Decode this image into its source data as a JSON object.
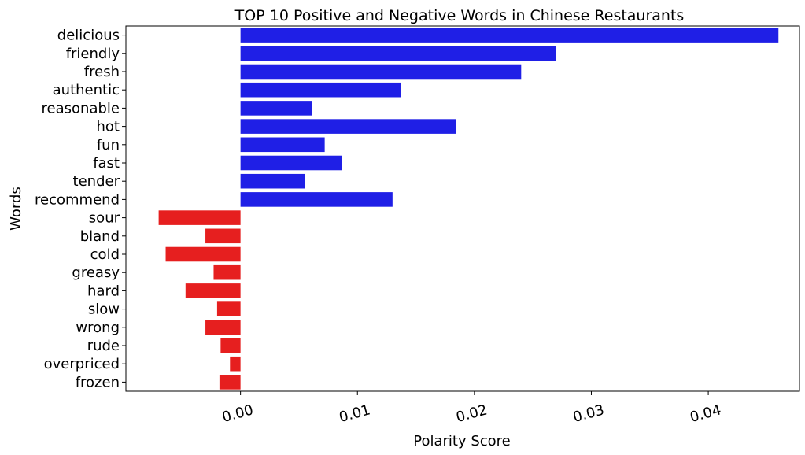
{
  "chart_data": {
    "type": "bar",
    "orientation": "horizontal",
    "title": "TOP 10 Positive and Negative Words in Chinese Restaurants",
    "xlabel": "Polarity Score",
    "ylabel": "Words",
    "xlim": [
      -0.0098,
      0.0478
    ],
    "xticks": [
      0.0,
      0.01,
      0.02,
      0.03,
      0.04
    ],
    "xtick_labels": [
      "0.00",
      "0.01",
      "0.02",
      "0.03",
      "0.04"
    ],
    "grid": false,
    "categories": [
      "delicious",
      "friendly",
      "fresh",
      "authentic",
      "reasonable",
      "hot",
      "fun",
      "fast",
      "tender",
      "recommend",
      "sour",
      "bland",
      "cold",
      "greasy",
      "hard",
      "slow",
      "wrong",
      "rude",
      "overpriced",
      "frozen"
    ],
    "values": [
      0.046,
      0.027,
      0.024,
      0.0137,
      0.0061,
      0.0184,
      0.0072,
      0.0087,
      0.0055,
      0.013,
      -0.007,
      -0.003,
      -0.0064,
      -0.0023,
      -0.0047,
      -0.002,
      -0.003,
      -0.0017,
      -0.0009,
      -0.0018
    ],
    "colors": {
      "positive": "#1f1fe6",
      "negative": "#e61f1f"
    }
  }
}
